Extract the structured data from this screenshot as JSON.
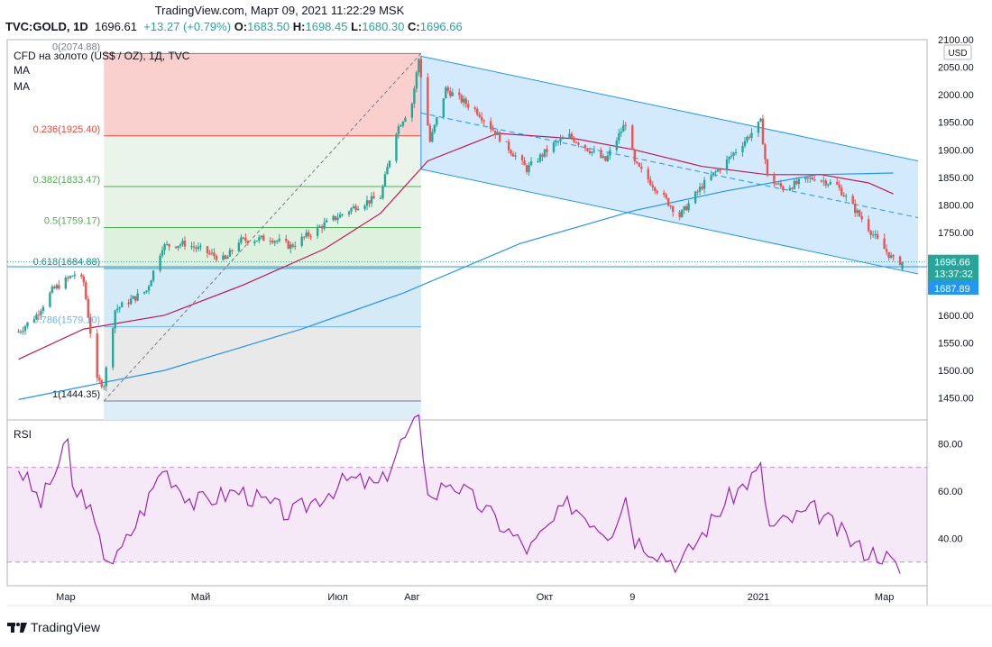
{
  "header": {
    "line1": "TradingView.com, Март 09, 2021 11:22:29 MSK",
    "symbol": "TVC:GOLD, 1D",
    "last": "1696.61",
    "change": "+13.27 (+0.79%)",
    "o_label": "O:",
    "o": "1683.50",
    "h_label": "H:",
    "h": "1698.45",
    "l_label": "L:",
    "l": "1680.30",
    "c_label": "C:",
    "c": "1696.66"
  },
  "legend": {
    "title": "CFD на золото (US$ / OZ), 1Д, TVC",
    "ma1": "MA",
    "ma2": "MA",
    "rsi": "RSI"
  },
  "currency": "USD",
  "badges": {
    "price": "1696.66",
    "countdown": "13:37:32",
    "level": "1687.89"
  },
  "colors": {
    "up": "#26a69a",
    "down": "#ef5350",
    "ma50": "#c2185b",
    "ma200": "#2196f3",
    "rsi": "#9c27b0",
    "channel": "#2196f3",
    "fib_red": "#f44336",
    "fib_green": "#4caf50",
    "fib_gray": "#9e9e9e",
    "fib_blue": "#64b5f6"
  },
  "footer": {
    "brand": "TradingView"
  },
  "chart_data": [
    {
      "type": "candlestick",
      "ylim": [
        1410,
        2100
      ],
      "y_ticks": [
        "2100.00",
        "2050.00",
        "2000.00",
        "1950.00",
        "1900.00",
        "1850.00",
        "1800.00",
        "1750.00",
        "1700.00",
        "1650.00",
        "1600.00",
        "1550.00",
        "1500.00",
        "1450.00"
      ],
      "x_ticks": [
        "Мар",
        "Май",
        "Июл",
        "Авг",
        "Окт",
        "9",
        "2021",
        "Мар"
      ],
      "close_path": [
        [
          "2020-02-10",
          1570
        ],
        [
          "2020-02-18",
          1600
        ],
        [
          "2020-02-25",
          1645
        ],
        [
          "2020-03-06",
          1675
        ],
        [
          "2020-03-10",
          1660
        ],
        [
          "2020-03-16",
          1480
        ],
        [
          "2020-03-19",
          1475
        ],
        [
          "2020-03-24",
          1610
        ],
        [
          "2020-04-07",
          1645
        ],
        [
          "2020-04-14",
          1725
        ],
        [
          "2020-04-24",
          1730
        ],
        [
          "2020-05-12",
          1700
        ],
        [
          "2020-05-18",
          1735
        ],
        [
          "2020-06-01",
          1740
        ],
        [
          "2020-06-10",
          1725
        ],
        [
          "2020-06-25",
          1765
        ],
        [
          "2020-07-10",
          1800
        ],
        [
          "2020-07-20",
          1815
        ],
        [
          "2020-07-27",
          1935
        ],
        [
          "2020-08-03",
          1985
        ],
        [
          "2020-08-06",
          2065
        ],
        [
          "2020-08-11",
          1915
        ],
        [
          "2020-08-18",
          2010
        ],
        [
          "2020-09-01",
          1970
        ],
        [
          "2020-09-23",
          1865
        ],
        [
          "2020-10-05",
          1910
        ],
        [
          "2020-10-12",
          1925
        ],
        [
          "2020-10-28",
          1880
        ],
        [
          "2020-11-06",
          1950
        ],
        [
          "2020-11-10",
          1875
        ],
        [
          "2020-11-30",
          1780
        ],
        [
          "2020-12-10",
          1835
        ],
        [
          "2020-12-21",
          1880
        ],
        [
          "2021-01-05",
          1950
        ],
        [
          "2021-01-08",
          1850
        ],
        [
          "2021-01-15",
          1830
        ],
        [
          "2021-01-29",
          1850
        ],
        [
          "2021-02-08",
          1835
        ],
        [
          "2021-02-19",
          1775
        ],
        [
          "2021-02-26",
          1735
        ],
        [
          "2021-03-05",
          1700
        ],
        [
          "2021-03-09",
          1696.66
        ]
      ],
      "ohlc_last": {
        "open": 1683.5,
        "high": 1698.45,
        "low": 1680.3,
        "close": 1696.66
      },
      "ma_short_path": [
        [
          "2020-02-10",
          1520
        ],
        [
          "2020-03-10",
          1575
        ],
        [
          "2020-04-15",
          1600
        ],
        [
          "2020-05-20",
          1655
        ],
        [
          "2020-06-25",
          1720
        ],
        [
          "2020-07-20",
          1785
        ],
        [
          "2020-08-10",
          1880
        ],
        [
          "2020-09-10",
          1930
        ],
        [
          "2020-10-15",
          1920
        ],
        [
          "2020-11-10",
          1900
        ],
        [
          "2020-12-10",
          1870
        ],
        [
          "2021-01-08",
          1855
        ],
        [
          "2021-02-01",
          1855
        ],
        [
          "2021-02-22",
          1840
        ],
        [
          "2021-03-05",
          1820
        ]
      ],
      "ma_long_path": [
        [
          "2020-02-10",
          1447
        ],
        [
          "2020-04-15",
          1500
        ],
        [
          "2020-06-15",
          1575
        ],
        [
          "2020-07-30",
          1640
        ],
        [
          "2020-09-20",
          1730
        ],
        [
          "2020-11-10",
          1790
        ],
        [
          "2020-12-20",
          1825
        ],
        [
          "2021-01-30",
          1855
        ],
        [
          "2021-03-05",
          1858
        ]
      ],
      "fibonacci": {
        "from": [
          "2020-03-19",
          1444.35
        ],
        "to": [
          "2020-08-07",
          2074.88
        ],
        "levels": [
          {
            "ratio": "0(2074.88)",
            "price": 2074.88
          },
          {
            "ratio": "0.236(1925.40)",
            "price": 1925.4
          },
          {
            "ratio": "0.382(1833.47)",
            "price": 1833.47
          },
          {
            "ratio": "0.5(1759.17)",
            "price": 1759.17
          },
          {
            "ratio": "0.618(1684.88)",
            "price": 1684.88
          },
          {
            "ratio": "0.786(1579.10)",
            "price": 1579.1
          },
          {
            "ratio": "1(1444.35)",
            "price": 1444.35
          }
        ]
      },
      "channel": {
        "upper": [
          [
            "2020-08-07",
            2070
          ],
          [
            "2021-03-16",
            1880
          ]
        ],
        "lower": [
          [
            "2020-08-07",
            1865
          ],
          [
            "2021-03-16",
            1675
          ]
        ],
        "mid": [
          [
            "2020-08-07",
            1967
          ],
          [
            "2021-03-16",
            1777
          ]
        ]
      },
      "horizontal_level": 1687.89
    },
    {
      "type": "line",
      "name": "RSI",
      "ylim": [
        20,
        90
      ],
      "y_ticks": [
        "80.00",
        "60.00",
        "40.00"
      ],
      "band": [
        30,
        70
      ],
      "path": [
        [
          "2020-02-10",
          70
        ],
        [
          "2020-02-20",
          55
        ],
        [
          "2020-03-03",
          80
        ],
        [
          "2020-03-06",
          55
        ],
        [
          "2020-03-10",
          60
        ],
        [
          "2020-03-18",
          35
        ],
        [
          "2020-03-24",
          30
        ],
        [
          "2020-04-07",
          55
        ],
        [
          "2020-04-14",
          70
        ],
        [
          "2020-04-28",
          55
        ],
        [
          "2020-05-18",
          60
        ],
        [
          "2020-06-10",
          50
        ],
        [
          "2020-07-06",
          65
        ],
        [
          "2020-07-20",
          62
        ],
        [
          "2020-07-29",
          80
        ],
        [
          "2020-08-06",
          90
        ],
        [
          "2020-08-11",
          55
        ],
        [
          "2020-08-19",
          65
        ],
        [
          "2020-09-01",
          55
        ],
        [
          "2020-09-24",
          35
        ],
        [
          "2020-10-12",
          55
        ],
        [
          "2020-10-30",
          42
        ],
        [
          "2020-11-06",
          58
        ],
        [
          "2020-11-10",
          40
        ],
        [
          "2020-11-30",
          29
        ],
        [
          "2020-12-21",
          56
        ],
        [
          "2021-01-06",
          70
        ],
        [
          "2021-01-08",
          44
        ],
        [
          "2021-01-29",
          52
        ],
        [
          "2021-02-19",
          35
        ],
        [
          "2021-03-01",
          33
        ],
        [
          "2021-03-08",
          26
        ],
        [
          "2021-03-09",
          29
        ]
      ]
    }
  ]
}
